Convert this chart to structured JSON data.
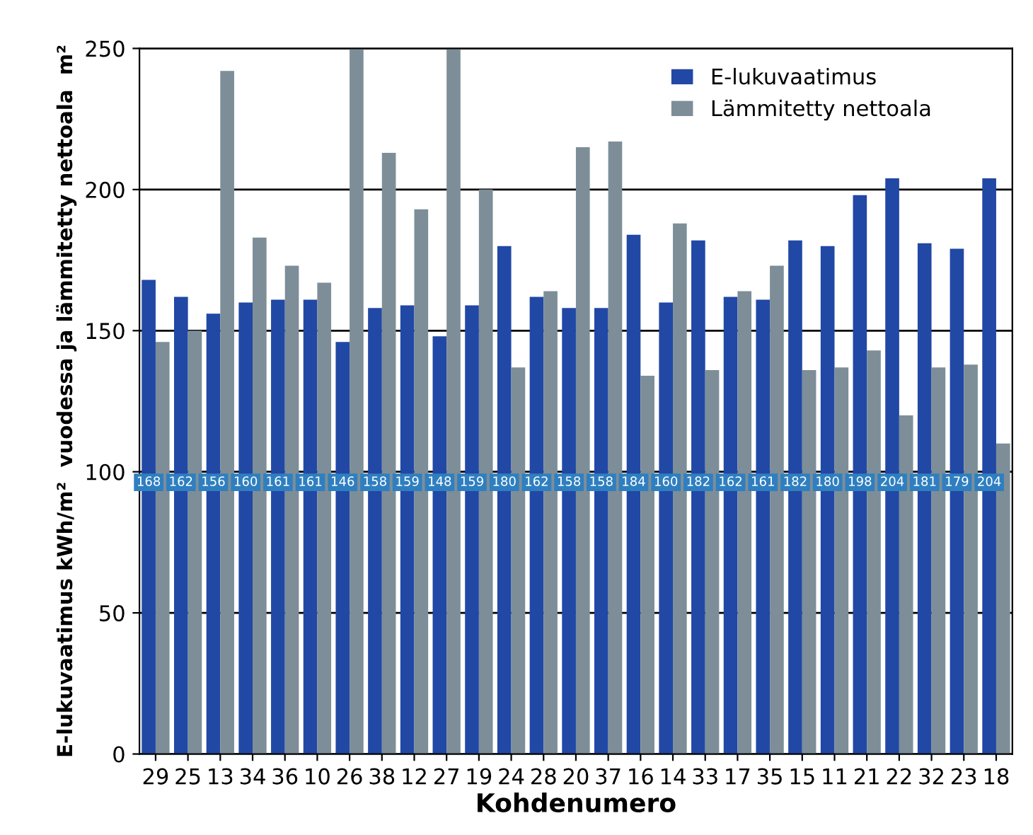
{
  "chart_data": {
    "type": "bar",
    "xlabel": "Kohdenumero",
    "ylabel": "E-lukuvaatimus kWh/m²  vuodessa ja lämmitetty nettoala  m²",
    "categories": [
      "29",
      "25",
      "13",
      "34",
      "36",
      "10",
      "26",
      "38",
      "12",
      "27",
      "19",
      "24",
      "28",
      "20",
      "37",
      "16",
      "14",
      "33",
      "17",
      "35",
      "15",
      "11",
      "21",
      "22",
      "32",
      "23",
      "18"
    ],
    "series": [
      {
        "name": "E-lukuvaatimus",
        "color": "#2148a5",
        "values": [
          168,
          162,
          156,
          160,
          161,
          161,
          146,
          158,
          159,
          148,
          159,
          180,
          162,
          158,
          158,
          184,
          160,
          182,
          162,
          161,
          182,
          180,
          198,
          204,
          181,
          179,
          204
        ],
        "value_labels": [
          "168",
          "162",
          "156",
          "160",
          "161",
          "161",
          "146",
          "158",
          "159",
          "148",
          "159",
          "180",
          "162",
          "158",
          "158",
          "184",
          "160",
          "182",
          "162",
          "161",
          "182",
          "180",
          "198",
          "204",
          "181",
          "179",
          "204"
        ]
      },
      {
        "name": "Lämmitetty nettoala",
        "color": "#7d8e98",
        "values": [
          146,
          150,
          242,
          183,
          173,
          167,
          250,
          213,
          193,
          250,
          200,
          137,
          164,
          215,
          217,
          134,
          188,
          136,
          164,
          173,
          136,
          137,
          143,
          120,
          137,
          138,
          110
        ]
      }
    ],
    "ylim": [
      0,
      250
    ],
    "yticks": [
      0,
      50,
      100,
      150,
      200,
      250
    ],
    "grid": "y",
    "legend": "top right"
  }
}
